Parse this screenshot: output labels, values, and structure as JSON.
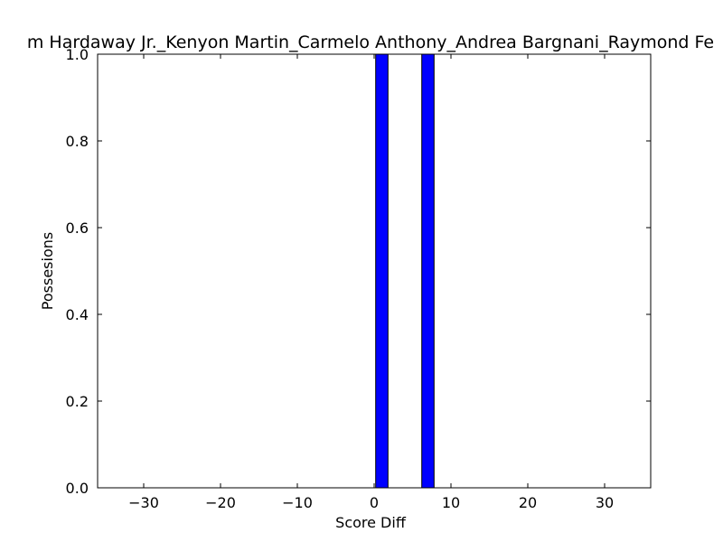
{
  "chart_data": {
    "type": "bar",
    "title": "m Hardaway Jr._Kenyon Martin_Carmelo Anthony_Andrea Bargnani_Raymond Fe",
    "xlabel": "Score Diff",
    "ylabel": "Possesions",
    "xlim": [
      -36,
      36
    ],
    "ylim": [
      0,
      1.0
    ],
    "bar_width": 1.6,
    "bars": [
      {
        "x": 0.2,
        "value": 1.0
      },
      {
        "x": 6.2,
        "value": 1.0
      }
    ],
    "xticks": [
      "−30",
      "−20",
      "−10",
      "0",
      "10",
      "20",
      "30"
    ],
    "xtick_values": [
      -30,
      -20,
      -10,
      0,
      10,
      20,
      30
    ],
    "yticks": [
      "0.0",
      "0.2",
      "0.4",
      "0.6",
      "0.8",
      "1.0"
    ],
    "ytick_values": [
      0,
      0.2,
      0.4,
      0.6,
      0.8,
      1.0
    ],
    "grid": false,
    "bar_color": "#0000ff",
    "edge_color": "#000000"
  }
}
